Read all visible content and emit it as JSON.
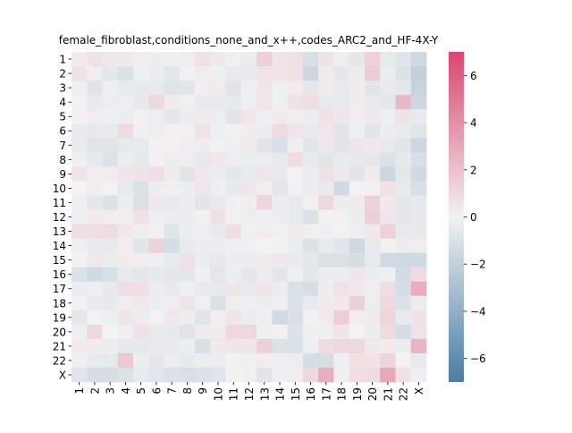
{
  "chart_data": {
    "type": "heatmap",
    "title": "female_fibroblast,conditions_none_and_x++,codes_ARC2_and_HF-4X-Y",
    "xlabel": "",
    "ylabel": "",
    "x_categories": [
      "1",
      "2",
      "3",
      "4",
      "5",
      "6",
      "7",
      "8",
      "9",
      "10",
      "11",
      "12",
      "13",
      "14",
      "15",
      "16",
      "17",
      "18",
      "19",
      "20",
      "21",
      "22",
      "X"
    ],
    "y_categories": [
      "1",
      "2",
      "3",
      "4",
      "5",
      "6",
      "7",
      "8",
      "9",
      "10",
      "11",
      "12",
      "13",
      "14",
      "15",
      "16",
      "17",
      "18",
      "19",
      "20",
      "21",
      "22",
      "X"
    ],
    "values": [
      [
        0.3,
        0.6,
        0.4,
        0.4,
        0.2,
        -0.3,
        -0.2,
        0.2,
        0.6,
        0.4,
        -0.1,
        -0.3,
        1.4,
        0.5,
        0.7,
        -1.1,
        0.6,
        -0.2,
        -0.6,
        1.3,
        -0.4,
        -0.8,
        -1.5
      ],
      [
        0.6,
        0.2,
        -0.6,
        -1.0,
        -0.2,
        -0.3,
        -0.6,
        0.1,
        0.2,
        -0.2,
        -0.4,
        -0.4,
        0.6,
        0.5,
        0.7,
        -1.6,
        0.3,
        -0.6,
        -0.3,
        1.5,
        -0.3,
        -0.9,
        -2.0
      ],
      [
        -0.2,
        -0.8,
        -0.2,
        -0.4,
        -0.5,
        -0.5,
        -0.8,
        -0.7,
        0.2,
        0.3,
        -0.8,
        -0.2,
        0.5,
        -0.2,
        0.3,
        -0.6,
        0.3,
        -0.4,
        0.3,
        -0.7,
        -0.4,
        -0.6,
        -1.8
      ],
      [
        0.0,
        -0.4,
        -0.3,
        -0.2,
        -0.5,
        1.0,
        0.3,
        -0.1,
        -0.4,
        -0.4,
        -0.5,
        -0.2,
        0.5,
        -0.2,
        0.6,
        0.8,
        -0.5,
        -0.4,
        0.3,
        -0.4,
        -0.6,
        2.3,
        -1.6
      ],
      [
        0.1,
        0.2,
        -0.2,
        -0.3,
        0.1,
        -0.3,
        -0.6,
        -0.3,
        0.3,
        -0.3,
        -0.7,
        0.5,
        -0.2,
        0.3,
        0.2,
        -0.3,
        0.6,
        0.5,
        0.2,
        0.4,
        -0.2,
        0.6,
        -0.4
      ],
      [
        -0.4,
        -0.5,
        -0.4,
        0.9,
        -0.1,
        0.2,
        0.1,
        -0.1,
        0.6,
        -0.2,
        0.1,
        0.3,
        -0.3,
        0.9,
        0.5,
        -0.4,
        0.5,
        -0.7,
        -0.2,
        -0.7,
        -0.3,
        -0.4,
        -0.8
      ],
      [
        -0.4,
        -0.8,
        -0.8,
        -0.5,
        -0.4,
        0.1,
        0.1,
        0.2,
        -0.3,
        0.1,
        -0.2,
        0.3,
        -0.7,
        -1.1,
        -0.2,
        -0.8,
        0.4,
        -0.7,
        0.5,
        0.4,
        -0.5,
        -0.7,
        -1.6
      ],
      [
        -0.2,
        -0.5,
        -0.9,
        -0.3,
        -0.5,
        0.1,
        -0.3,
        -0.3,
        -0.5,
        0.4,
        0.2,
        -0.3,
        -0.3,
        -0.4,
        0.9,
        -0.4,
        -0.7,
        -0.4,
        -0.5,
        -0.6,
        -0.9,
        -0.5,
        -1.1
      ],
      [
        0.6,
        0.2,
        0.2,
        0.5,
        0.6,
        0.8,
        0.3,
        -0.8,
        0.4,
        -0.3,
        -0.6,
        -0.4,
        0.5,
        -0.5,
        0.0,
        -0.3,
        0.7,
        0.4,
        -0.7,
        0.3,
        -1.6,
        -0.6,
        -1.4
      ],
      [
        0.0,
        0.2,
        0.0,
        -0.4,
        -1.0,
        -0.3,
        -0.2,
        -0.3,
        0.5,
        -0.2,
        -0.5,
        0.5,
        0.2,
        -0.6,
        0.1,
        -0.3,
        -0.4,
        -1.4,
        0.0,
        0.1,
        0.7,
        -0.4,
        -1.1
      ],
      [
        -0.2,
        -0.6,
        -0.9,
        -0.3,
        -1.0,
        0.4,
        -0.4,
        -0.3,
        -0.7,
        -0.4,
        -0.1,
        0.2,
        1.2,
        -0.3,
        -0.4,
        0.1,
        1.1,
        -0.3,
        0.3,
        1.3,
        0.4,
        -0.6,
        -0.5
      ],
      [
        -0.2,
        0.3,
        0.2,
        0.2,
        0.7,
        -0.2,
        -0.3,
        -0.3,
        0.1,
        0.7,
        -0.1,
        -0.3,
        -0.2,
        -0.3,
        -0.4,
        -1.0,
        0.1,
        0.1,
        -0.3,
        1.4,
        0.5,
        -0.6,
        -0.5
      ],
      [
        0.8,
        0.8,
        0.9,
        0.4,
        0.2,
        -0.1,
        -0.7,
        -0.3,
        0.2,
        -0.4,
        0.8,
        -0.1,
        0.3,
        -0.1,
        0.3,
        -0.1,
        -0.2,
        0.0,
        0.2,
        0.4,
        1.3,
        -0.4,
        -0.5
      ],
      [
        -0.2,
        -0.4,
        -0.5,
        0.2,
        -0.7,
        1.3,
        -1.2,
        -0.4,
        -0.3,
        -0.3,
        -0.2,
        -0.1,
        0.0,
        0.1,
        -0.3,
        -0.9,
        -0.4,
        -0.7,
        -1.5,
        -0.4,
        0.1,
        -0.3,
        0.3
      ],
      [
        0.1,
        0.4,
        -0.3,
        0.3,
        0.2,
        -0.2,
        -0.4,
        0.7,
        -0.3,
        -0.5,
        -0.3,
        -0.3,
        0.3,
        0.4,
        -0.4,
        -0.6,
        -1.0,
        -1.0,
        -1.2,
        -0.5,
        -1.4,
        -1.4,
        -1.4
      ],
      [
        -0.9,
        -1.4,
        -1.1,
        -0.4,
        -0.6,
        -0.5,
        -0.6,
        -0.6,
        -0.1,
        -0.6,
        -0.3,
        -0.6,
        -0.3,
        -0.7,
        -0.2,
        -0.6,
        -0.3,
        -0.3,
        0.5,
        -0.3,
        -0.2,
        -1.3,
        0.9
      ],
      [
        -0.3,
        -0.2,
        -0.5,
        0.8,
        0.8,
        -0.3,
        -0.5,
        -0.2,
        -0.4,
        -0.5,
        0.5,
        -0.4,
        0.5,
        -0.3,
        -1.0,
        -1.2,
        -0.3,
        0.6,
        0.4,
        0.2,
        0.8,
        -1.2,
        2.8
      ],
      [
        0.1,
        -0.4,
        -0.5,
        0.2,
        0.4,
        -0.3,
        0.2,
        0.6,
        -0.2,
        -1.0,
        0.2,
        -0.2,
        -0.3,
        -0.2,
        -1.0,
        -0.4,
        0.3,
        0.4,
        1.4,
        -0.3,
        1.0,
        -1.0,
        -0.3
      ],
      [
        -0.6,
        0.0,
        -0.2,
        0.5,
        -0.3,
        0.0,
        0.4,
        -0.3,
        -0.8,
        0.2,
        0.5,
        -0.3,
        -0.1,
        -1.4,
        -1.1,
        0.1,
        0.3,
        1.5,
        0.2,
        0.3,
        1.2,
        -0.4,
        0.7
      ],
      [
        -0.2,
        1.1,
        0.0,
        -0.2,
        0.7,
        -0.4,
        -0.5,
        -0.8,
        0.3,
        0.3,
        1.0,
        1.1,
        -0.1,
        0.1,
        -0.9,
        -0.2,
        -0.2,
        0.5,
        0.0,
        -0.3,
        0.9,
        -1.2,
        0.6
      ],
      [
        0.3,
        0.3,
        -0.3,
        -0.5,
        -0.5,
        -0.4,
        -0.4,
        -0.3,
        -1.1,
        0.4,
        0.5,
        0.5,
        1.4,
        -0.9,
        -0.9,
        -0.2,
        0.9,
        1.0,
        1.0,
        0.4,
        0.3,
        -0.3,
        2.5
      ],
      [
        -0.2,
        -0.4,
        -0.5,
        1.7,
        -0.3,
        -0.6,
        -0.3,
        -0.5,
        -0.3,
        -0.3,
        0.0,
        -0.1,
        0.2,
        -0.2,
        -0.3,
        -1.2,
        -1.2,
        -0.2,
        0.7,
        0.6,
        1.2,
        0.0,
        -0.4
      ],
      [
        -0.8,
        -1.2,
        -1.2,
        -1.0,
        -0.5,
        -0.7,
        -1.0,
        -1.1,
        -1.0,
        -0.8,
        0.1,
        -0.1,
        -0.8,
        -0.2,
        0.2,
        1.1,
        2.8,
        -0.2,
        0.8,
        0.9,
        3.0,
        0.7,
        -0.2
      ]
    ],
    "vmin": -7,
    "vmax": 7,
    "colorbar": {
      "ticks": [
        6,
        4,
        2,
        0,
        -2,
        -4,
        -6
      ],
      "tick_labels": [
        "6",
        "4",
        "2",
        "0",
        "−2",
        "−4",
        "−6"
      ]
    },
    "colormap": {
      "negative": "#4a7ca6",
      "center": "#f2f2f2",
      "positive": "#d9466f"
    },
    "legend": "colorbar-right",
    "grid": false
  }
}
